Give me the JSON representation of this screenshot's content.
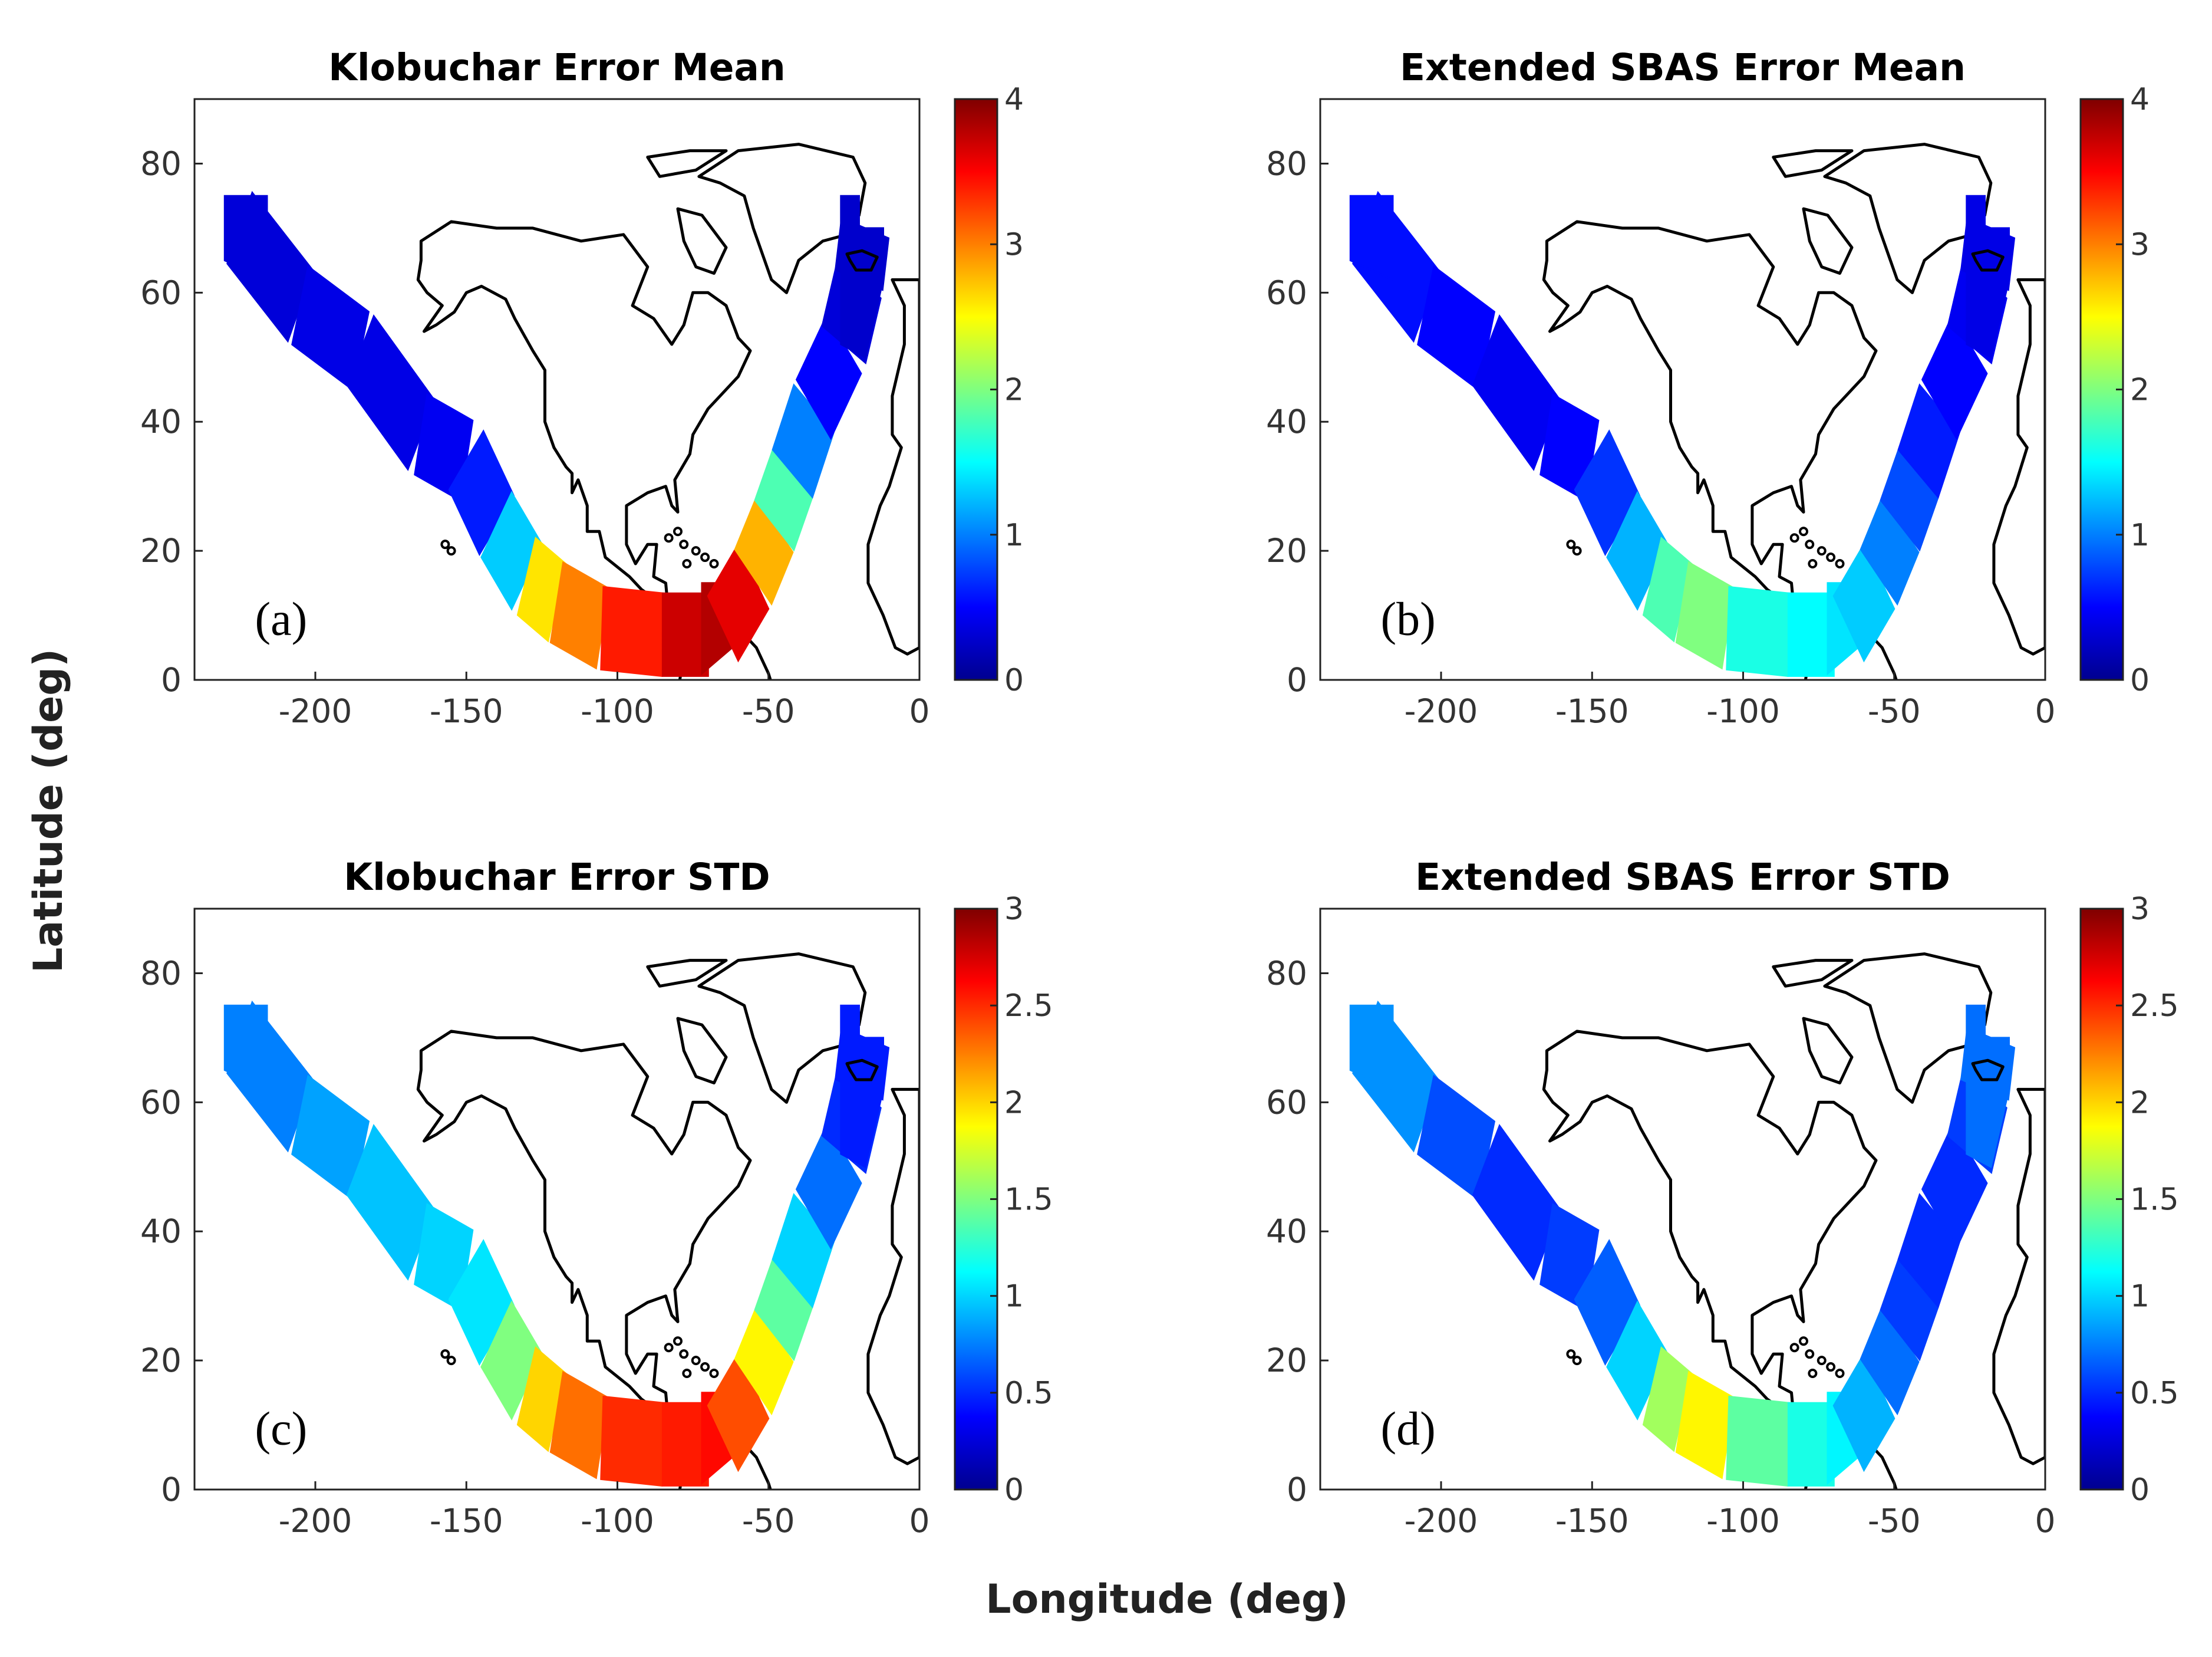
{
  "figure": {
    "xlabel": "Longitude (deg)",
    "ylabel": "Latitude (deg)"
  },
  "colors": {
    "jet_scale": [
      "#00008f",
      "#0000ff",
      "#007fff",
      "#00ffff",
      "#7fff7f",
      "#ffff00",
      "#ff7f00",
      "#ff0000",
      "#7f0000"
    ]
  },
  "chart_data": [
    {
      "type": "heatmap",
      "id": "a",
      "panel_label": "(a)",
      "title": "Klobuchar Error Mean",
      "xlabel": "Longitude (deg)",
      "ylabel": "Latitude (deg)",
      "xlim": [
        -240,
        0
      ],
      "ylim": [
        0,
        90
      ],
      "x_ticks": [
        -200,
        -150,
        -100,
        -50,
        0
      ],
      "x_tick_labels": [
        "-200",
        "-150",
        "-100",
        "-50",
        "0"
      ],
      "y_ticks": [
        0,
        20,
        40,
        60,
        80
      ],
      "y_tick_labels": [
        "0",
        "20",
        "40",
        "60",
        "80"
      ],
      "clim": [
        0,
        4
      ],
      "colorbar_ticks": [
        0,
        1,
        2,
        3,
        4
      ],
      "colorbar_tick_labels": [
        "0",
        "1",
        "2",
        "3",
        "4"
      ],
      "west_leg": [
        [
          -225,
          0.35
        ],
        [
          -205,
          0.4
        ],
        [
          -185,
          0.4
        ],
        [
          -165,
          0.45
        ],
        [
          -150,
          0.6
        ],
        [
          -140,
          1.3
        ],
        [
          -130,
          2.6
        ],
        [
          -120,
          3.0
        ],
        [
          -105,
          3.4
        ],
        [
          -85,
          3.7
        ],
        [
          -70,
          3.8
        ]
      ],
      "east_leg": [
        [
          -65,
          3.6
        ],
        [
          -55,
          2.8
        ],
        [
          -48,
          1.8
        ],
        [
          -42,
          1.0
        ],
        [
          -35,
          0.5
        ],
        [
          -25,
          0.35
        ],
        [
          -18,
          0.3
        ]
      ]
    },
    {
      "type": "heatmap",
      "id": "b",
      "panel_label": "(b)",
      "title": "Extended SBAS Error Mean",
      "xlabel": "Longitude (deg)",
      "ylabel": "Latitude (deg)",
      "xlim": [
        -240,
        0
      ],
      "ylim": [
        0,
        90
      ],
      "x_ticks": [
        -200,
        -150,
        -100,
        -50,
        0
      ],
      "x_tick_labels": [
        "-200",
        "-150",
        "-100",
        "-50",
        "0"
      ],
      "y_ticks": [
        0,
        20,
        40,
        60,
        80
      ],
      "y_tick_labels": [
        "0",
        "20",
        "40",
        "60",
        "80"
      ],
      "clim": [
        0,
        4
      ],
      "colorbar_ticks": [
        0,
        1,
        2,
        3,
        4
      ],
      "colorbar_tick_labels": [
        "0",
        "1",
        "2",
        "3",
        "4"
      ],
      "west_leg": [
        [
          -225,
          0.55
        ],
        [
          -205,
          0.5
        ],
        [
          -185,
          0.45
        ],
        [
          -165,
          0.5
        ],
        [
          -150,
          0.7
        ],
        [
          -140,
          1.2
        ],
        [
          -130,
          1.8
        ],
        [
          -120,
          2.0
        ],
        [
          -105,
          1.6
        ],
        [
          -85,
          1.5
        ],
        [
          -70,
          1.4
        ]
      ],
      "east_leg": [
        [
          -65,
          1.3
        ],
        [
          -55,
          1.0
        ],
        [
          -48,
          0.8
        ],
        [
          -42,
          0.6
        ],
        [
          -35,
          0.5
        ],
        [
          -25,
          0.45
        ],
        [
          -18,
          0.4
        ]
      ]
    },
    {
      "type": "heatmap",
      "id": "c",
      "panel_label": "(c)",
      "title": "Klobuchar Error STD",
      "xlabel": "Longitude (deg)",
      "ylabel": "Latitude (deg)",
      "xlim": [
        -240,
        0
      ],
      "ylim": [
        0,
        90
      ],
      "x_ticks": [
        -200,
        -150,
        -100,
        -50,
        0
      ],
      "x_tick_labels": [
        "-200",
        "-150",
        "-100",
        "-50",
        "0"
      ],
      "y_ticks": [
        0,
        20,
        40,
        60,
        80
      ],
      "y_tick_labels": [
        "0",
        "20",
        "40",
        "60",
        "80"
      ],
      "clim": [
        0,
        3
      ],
      "colorbar_ticks": [
        0,
        0.5,
        1,
        1.5,
        2,
        2.5,
        3
      ],
      "colorbar_tick_labels": [
        "0",
        "0.5",
        "1",
        "1.5",
        "2",
        "2.5",
        "3"
      ],
      "west_leg": [
        [
          -225,
          0.75
        ],
        [
          -205,
          0.85
        ],
        [
          -185,
          0.95
        ],
        [
          -165,
          1.0
        ],
        [
          -150,
          1.05
        ],
        [
          -140,
          1.5
        ],
        [
          -130,
          2.0
        ],
        [
          -120,
          2.3
        ],
        [
          -105,
          2.5
        ],
        [
          -85,
          2.55
        ],
        [
          -70,
          2.6
        ]
      ],
      "east_leg": [
        [
          -65,
          2.4
        ],
        [
          -55,
          1.9
        ],
        [
          -48,
          1.4
        ],
        [
          -42,
          1.0
        ],
        [
          -35,
          0.7
        ],
        [
          -25,
          0.5
        ],
        [
          -18,
          0.45
        ]
      ]
    },
    {
      "type": "heatmap",
      "id": "d",
      "panel_label": "(d)",
      "title": "Extended SBAS Error STD",
      "xlabel": "Longitude (deg)",
      "ylabel": "Latitude (deg)",
      "xlim": [
        -240,
        0
      ],
      "ylim": [
        0,
        90
      ],
      "x_ticks": [
        -200,
        -150,
        -100,
        -50,
        0
      ],
      "x_tick_labels": [
        "-200",
        "-150",
        "-100",
        "-50",
        "0"
      ],
      "y_ticks": [
        0,
        20,
        40,
        60,
        80
      ],
      "y_tick_labels": [
        "0",
        "20",
        "40",
        "60",
        "80"
      ],
      "clim": [
        0,
        3
      ],
      "colorbar_ticks": [
        0,
        0.5,
        1,
        1.5,
        2,
        2.5,
        3
      ],
      "colorbar_tick_labels": [
        "0",
        "0.5",
        "1",
        "1.5",
        "2",
        "2.5",
        "3"
      ],
      "west_leg": [
        [
          -225,
          0.8
        ],
        [
          -205,
          0.6
        ],
        [
          -185,
          0.5
        ],
        [
          -165,
          0.55
        ],
        [
          -150,
          0.65
        ],
        [
          -140,
          1.0
        ],
        [
          -130,
          1.6
        ],
        [
          -120,
          1.9
        ],
        [
          -105,
          1.4
        ],
        [
          -85,
          1.2
        ],
        [
          -70,
          1.1
        ]
      ],
      "east_leg": [
        [
          -65,
          0.9
        ],
        [
          -55,
          0.7
        ],
        [
          -48,
          0.55
        ],
        [
          -42,
          0.5
        ],
        [
          -35,
          0.5
        ],
        [
          -25,
          0.55
        ],
        [
          -18,
          0.7
        ]
      ]
    }
  ]
}
